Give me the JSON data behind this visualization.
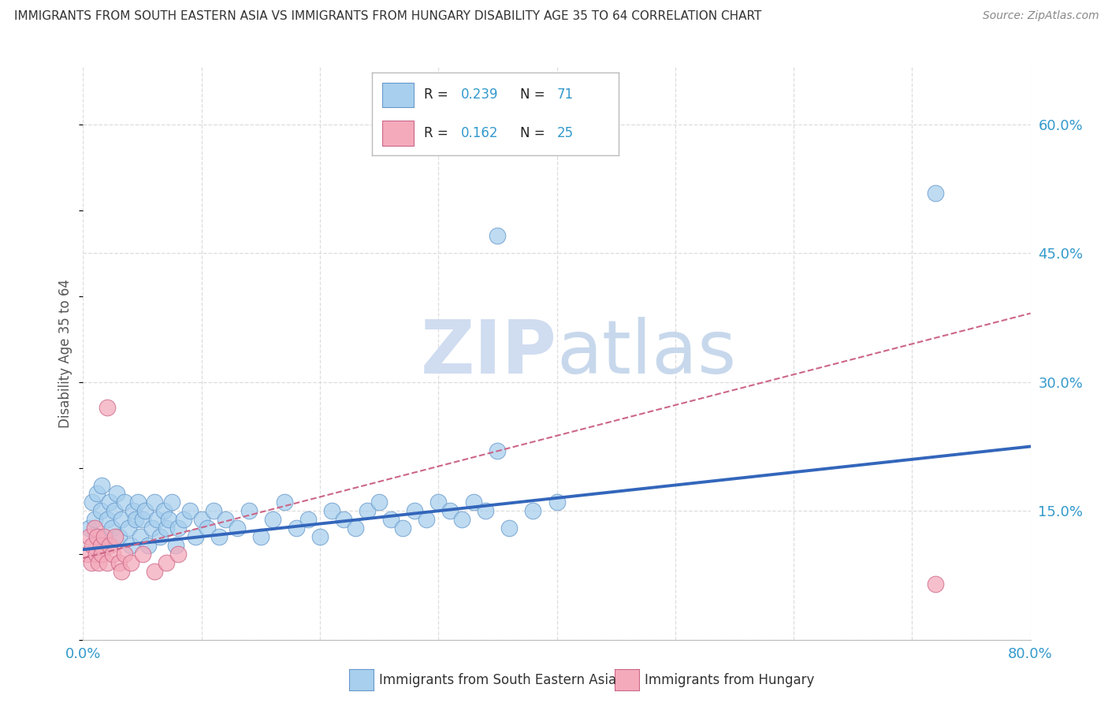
{
  "title": "IMMIGRANTS FROM SOUTH EASTERN ASIA VS IMMIGRANTS FROM HUNGARY DISABILITY AGE 35 TO 64 CORRELATION CHART",
  "source": "Source: ZipAtlas.com",
  "ylabel": "Disability Age 35 to 64",
  "xlim": [
    0.0,
    0.8
  ],
  "ylim": [
    0.0,
    0.667
  ],
  "legend_label1": "Immigrants from South Eastern Asia",
  "legend_label2": "Immigrants from Hungary",
  "R1": 0.239,
  "N1": 71,
  "R2": 0.162,
  "N2": 25,
  "color_blue": "#A8CFED",
  "color_blue_edge": "#6699CC",
  "color_blue_line": "#3366BB",
  "color_pink": "#F4AABB",
  "color_pink_edge": "#CC6688",
  "color_pink_line": "#CC6688",
  "background_color": "#FFFFFF",
  "grid_color": "#DDDDDD",
  "title_color": "#333333",
  "source_color": "#888888",
  "tick_color": "#3399CC",
  "ytick_vals": [
    0.15,
    0.3,
    0.45,
    0.6
  ],
  "ytick_labels": [
    "15.0%",
    "30.0%",
    "45.0%",
    "60.0%"
  ],
  "ygrid_vals": [
    0.0,
    0.15,
    0.3,
    0.45,
    0.6
  ],
  "blue_scatter_x": [
    0.005,
    0.008,
    0.01,
    0.012,
    0.013,
    0.015,
    0.016,
    0.018,
    0.02,
    0.022,
    0.024,
    0.026,
    0.028,
    0.03,
    0.032,
    0.035,
    0.038,
    0.04,
    0.042,
    0.044,
    0.046,
    0.048,
    0.05,
    0.052,
    0.055,
    0.058,
    0.06,
    0.062,
    0.065,
    0.068,
    0.07,
    0.072,
    0.075,
    0.078,
    0.08,
    0.085,
    0.09,
    0.095,
    0.1,
    0.105,
    0.11,
    0.115,
    0.12,
    0.13,
    0.14,
    0.15,
    0.16,
    0.17,
    0.18,
    0.19,
    0.2,
    0.21,
    0.22,
    0.23,
    0.24,
    0.25,
    0.26,
    0.27,
    0.28,
    0.29,
    0.3,
    0.31,
    0.32,
    0.33,
    0.34,
    0.35,
    0.36,
    0.38,
    0.4,
    0.35,
    0.72
  ],
  "blue_scatter_y": [
    0.13,
    0.16,
    0.14,
    0.17,
    0.12,
    0.15,
    0.18,
    0.11,
    0.14,
    0.16,
    0.13,
    0.15,
    0.17,
    0.12,
    0.14,
    0.16,
    0.13,
    0.11,
    0.15,
    0.14,
    0.16,
    0.12,
    0.14,
    0.15,
    0.11,
    0.13,
    0.16,
    0.14,
    0.12,
    0.15,
    0.13,
    0.14,
    0.16,
    0.11,
    0.13,
    0.14,
    0.15,
    0.12,
    0.14,
    0.13,
    0.15,
    0.12,
    0.14,
    0.13,
    0.15,
    0.12,
    0.14,
    0.16,
    0.13,
    0.14,
    0.12,
    0.15,
    0.14,
    0.13,
    0.15,
    0.16,
    0.14,
    0.13,
    0.15,
    0.14,
    0.16,
    0.15,
    0.14,
    0.16,
    0.15,
    0.22,
    0.13,
    0.15,
    0.16,
    0.47,
    0.52
  ],
  "pink_scatter_x": [
    0.003,
    0.005,
    0.007,
    0.008,
    0.01,
    0.011,
    0.012,
    0.013,
    0.015,
    0.016,
    0.018,
    0.02,
    0.022,
    0.025,
    0.027,
    0.03,
    0.032,
    0.035,
    0.04,
    0.05,
    0.06,
    0.07,
    0.08,
    0.02,
    0.72
  ],
  "pink_scatter_y": [
    0.1,
    0.12,
    0.09,
    0.11,
    0.13,
    0.1,
    0.12,
    0.09,
    0.11,
    0.1,
    0.12,
    0.09,
    0.11,
    0.1,
    0.12,
    0.09,
    0.08,
    0.1,
    0.09,
    0.1,
    0.08,
    0.09,
    0.1,
    0.27,
    0.065
  ],
  "blue_line_x": [
    0.0,
    0.8
  ],
  "blue_line_y": [
    0.105,
    0.225
  ],
  "pink_line_x": [
    0.0,
    0.8
  ],
  "pink_line_y": [
    0.095,
    0.38
  ]
}
